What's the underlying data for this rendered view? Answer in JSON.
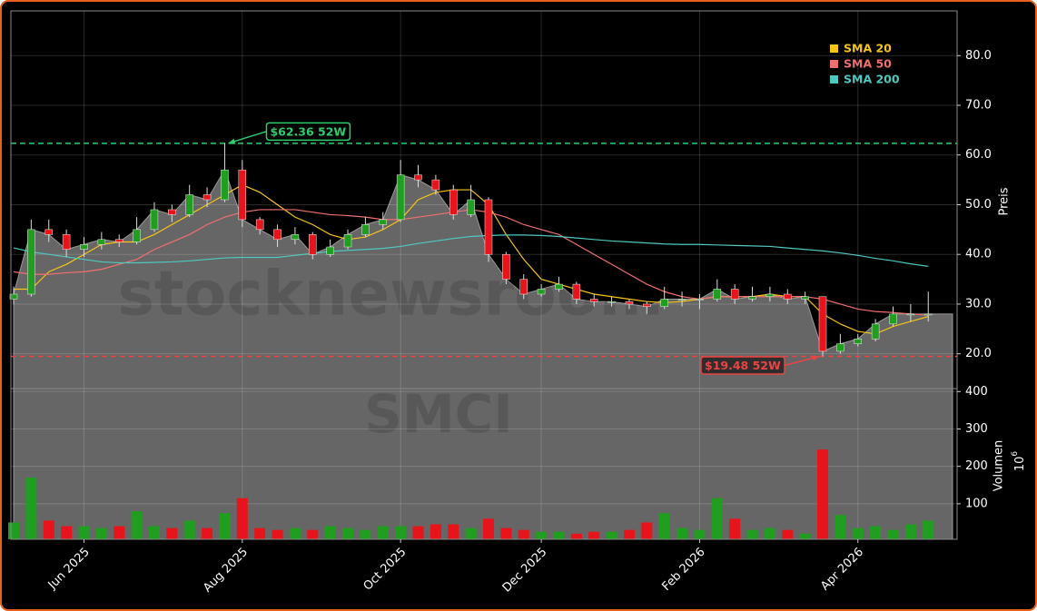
{
  "chart_data": {
    "type": "candlestick",
    "watermark": "stocknewsroom",
    "symbol": "SMCI",
    "categories": [
      null,
      null,
      null,
      null,
      "Jun 2025",
      null,
      null,
      null,
      null,
      null,
      null,
      null,
      null,
      "Aug 2025",
      null,
      null,
      null,
      null,
      null,
      null,
      null,
      null,
      "Oct 2025",
      null,
      null,
      null,
      null,
      null,
      null,
      null,
      "Dec 2025",
      null,
      null,
      null,
      null,
      null,
      null,
      null,
      null,
      "Feb 2026",
      null,
      null,
      null,
      null,
      null,
      null,
      null,
      null,
      "Apr 2026",
      null,
      null,
      null,
      null
    ],
    "open": [
      31,
      32,
      45,
      44,
      41,
      42,
      43,
      42.5,
      45,
      49,
      48,
      52,
      51,
      57,
      47,
      45,
      43,
      44,
      40,
      41.5,
      44,
      46,
      47,
      56,
      55,
      53,
      48,
      51,
      40,
      35,
      32,
      33,
      34,
      31,
      30.5,
      30.5,
      30,
      29.5,
      31,
      31,
      31,
      33,
      31,
      31.5,
      32,
      31,
      31.5,
      20.5,
      22,
      23,
      26,
      28,
      28
    ],
    "high": [
      33.5,
      47,
      47,
      45,
      43.5,
      44.5,
      44,
      47.5,
      50.5,
      50,
      54,
      53.5,
      62.36,
      59,
      47.5,
      46,
      45.5,
      44.5,
      43,
      45,
      47.5,
      48.5,
      59,
      58,
      56,
      54,
      54,
      51.5,
      40.5,
      36,
      34,
      35.5,
      34.5,
      32,
      31.5,
      31,
      30.5,
      33.5,
      32.5,
      32,
      35,
      34,
      33.5,
      33.5,
      33,
      32.5,
      31.5,
      24,
      24,
      27,
      29.5,
      30,
      32.5
    ],
    "low": [
      30,
      31.5,
      42.5,
      39.5,
      39.5,
      41,
      41.5,
      42,
      44.5,
      46.5,
      47.5,
      49.5,
      50.5,
      45.5,
      44,
      41.5,
      42,
      39,
      39.5,
      41,
      43.5,
      45,
      46.5,
      53.5,
      52,
      47,
      47.5,
      38.5,
      34,
      31,
      31.5,
      32.5,
      30,
      29.5,
      29.5,
      29,
      28,
      29,
      29.5,
      29,
      30.5,
      30,
      30.5,
      30.5,
      30,
      30,
      19.48,
      20,
      21.5,
      22.5,
      25.5,
      26.5,
      26.5
    ],
    "close": [
      32,
      45,
      44,
      41,
      42,
      43,
      42.5,
      45,
      49,
      48,
      52,
      51,
      57,
      47,
      45,
      43,
      44,
      40,
      41.5,
      44,
      46,
      47,
      56,
      55,
      53,
      48,
      51,
      40,
      35,
      32,
      33,
      34,
      31,
      30.5,
      30.5,
      30,
      29.5,
      31,
      31,
      31,
      33,
      31,
      31.5,
      32,
      31,
      31.5,
      20.5,
      22,
      23,
      26,
      28,
      28,
      28
    ],
    "up_color": "#1f9e1f",
    "down_color": "#e8141c",
    "area_color": "#666666",
    "series": [
      {
        "name": "SMA 20",
        "color": "#f5c518",
        "values": [
          33,
          33,
          36.5,
          38,
          40,
          42,
          42.5,
          42.5,
          44,
          46,
          48,
          50,
          52,
          54,
          52.5,
          50,
          47.5,
          46,
          44,
          43,
          43.5,
          45,
          47,
          51,
          52.5,
          53,
          53,
          50,
          44,
          39,
          35,
          34,
          33,
          32,
          31.5,
          31,
          30.5,
          30.3,
          30.5,
          31,
          31.5,
          31.5,
          31.5,
          32,
          31.5,
          31.5,
          28,
          26,
          24.5,
          24,
          25.5,
          26.5,
          27.5
        ]
      },
      {
        "name": "SMA 50",
        "color": "#f07070",
        "values": [
          36.5,
          36,
          36,
          36.3,
          36.5,
          37,
          38,
          39,
          41,
          42.5,
          44,
          46,
          47.5,
          48.5,
          49,
          49,
          49,
          48.5,
          48,
          47.8,
          47.5,
          47,
          47,
          47.5,
          48,
          48.5,
          49,
          48.5,
          47.5,
          46,
          45,
          44,
          42,
          40,
          38,
          36,
          34,
          32.5,
          31.5,
          31,
          31.5,
          31.5,
          31.5,
          31.5,
          31.5,
          31.5,
          31,
          30,
          29,
          28.5,
          28.3,
          28,
          27.8
        ]
      },
      {
        "name": "SMA 200",
        "color": "#4fc9c0",
        "values": [
          41.3,
          40.5,
          40,
          39.5,
          39,
          38.5,
          38.3,
          38.3,
          38.4,
          38.5,
          38.7,
          39,
          39.3,
          39.4,
          39.4,
          39.4,
          39.8,
          40.2,
          40.6,
          40.8,
          41,
          41.2,
          41.6,
          42.2,
          42.7,
          43.2,
          43.6,
          43.8,
          43.9,
          43.9,
          43.8,
          43.6,
          43.3,
          43,
          42.7,
          42.5,
          42.3,
          42.1,
          42,
          42,
          41.9,
          41.8,
          41.7,
          41.6,
          41.3,
          41,
          40.7,
          40.3,
          39.8,
          39.2,
          38.7,
          38.1,
          37.6
        ]
      }
    ],
    "ylabel": "Preis",
    "ylim": [
      13,
      89
    ],
    "yticks": [
      {
        "value": 20,
        "label": "20.0"
      },
      {
        "value": 30,
        "label": "30.0"
      },
      {
        "value": 40,
        "label": "40.0"
      },
      {
        "value": 50,
        "label": "50.0"
      },
      {
        "value": 60,
        "label": "60.0"
      },
      {
        "value": 70,
        "label": "70.0"
      },
      {
        "value": 80,
        "label": "80.0"
      }
    ],
    "volume": {
      "ylabel": "Volumen",
      "scale_base": "10",
      "scale_exponent": "6",
      "values": [
        50,
        170,
        55,
        40,
        40,
        35,
        40,
        80,
        40,
        35,
        55,
        35,
        75,
        115,
        35,
        30,
        35,
        30,
        40,
        35,
        30,
        40,
        40,
        40,
        45,
        45,
        35,
        60,
        35,
        30,
        25,
        25,
        20,
        25,
        25,
        30,
        50,
        75,
        35,
        30,
        115,
        60,
        30,
        35,
        30,
        20,
        245,
        70,
        35,
        40,
        30,
        45,
        55
      ],
      "ylim": [
        5,
        408
      ],
      "yticks": [
        100,
        200,
        300,
        400
      ]
    },
    "annotations": [
      {
        "value": 62.36,
        "label": "$62.36 52W",
        "color": "#2ecc71"
      },
      {
        "value": 19.48,
        "label": "$19.48 52W",
        "color": "#e84545"
      }
    ],
    "legend": "upper right",
    "grid": true
  }
}
